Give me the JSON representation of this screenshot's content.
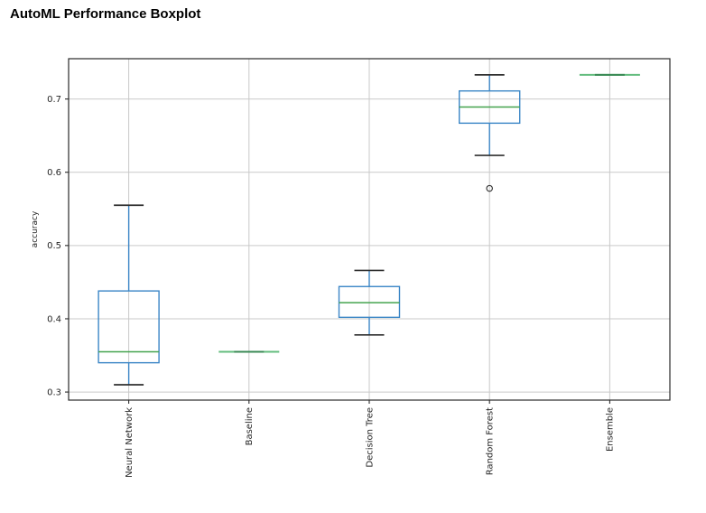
{
  "page": {
    "title": "AutoML Performance Boxplot"
  },
  "chart_data": {
    "type": "boxplot",
    "title": "AutoML Performance Boxplot",
    "xlabel": "",
    "ylabel": "accuracy",
    "categories": [
      "Neural Network",
      "Baseline",
      "Decision Tree",
      "Random Forest",
      "Ensemble"
    ],
    "yticks": [
      0.3,
      0.4,
      0.5,
      0.6,
      0.7
    ],
    "ytick_labels": [
      "0.3",
      "0.4",
      "0.5",
      "0.6",
      "0.7"
    ],
    "ylim": [
      0.289,
      0.755
    ],
    "grid": true,
    "legend": "none",
    "series": [
      {
        "name": "Neural Network",
        "whisker_low": 0.31,
        "q1": 0.34,
        "median": 0.355,
        "q3": 0.438,
        "whisker_high": 0.555,
        "outliers": []
      },
      {
        "name": "Baseline",
        "whisker_low": 0.355,
        "q1": 0.355,
        "median": 0.355,
        "q3": 0.355,
        "whisker_high": 0.355,
        "outliers": []
      },
      {
        "name": "Decision Tree",
        "whisker_low": 0.378,
        "q1": 0.402,
        "median": 0.422,
        "q3": 0.444,
        "whisker_high": 0.466,
        "outliers": []
      },
      {
        "name": "Random Forest",
        "whisker_low": 0.623,
        "q1": 0.667,
        "median": 0.689,
        "q3": 0.711,
        "whisker_high": 0.733,
        "outliers": [
          0.578
        ]
      },
      {
        "name": "Ensemble",
        "whisker_low": 0.733,
        "q1": 0.733,
        "median": 0.733,
        "q3": 0.733,
        "whisker_high": 0.733,
        "outliers": []
      }
    ],
    "colors": {
      "box": "#3b86c6",
      "whisker": "#3b86c6",
      "cap": "#2f2f2f",
      "median": "#44a34e",
      "flat_outer": "#63bc7e",
      "flat_inner": "#3a8a55",
      "outlier": "#2f2f2f",
      "grid": "#c9c9c9",
      "spine": "#2a2a2a",
      "text": "#262626"
    }
  }
}
